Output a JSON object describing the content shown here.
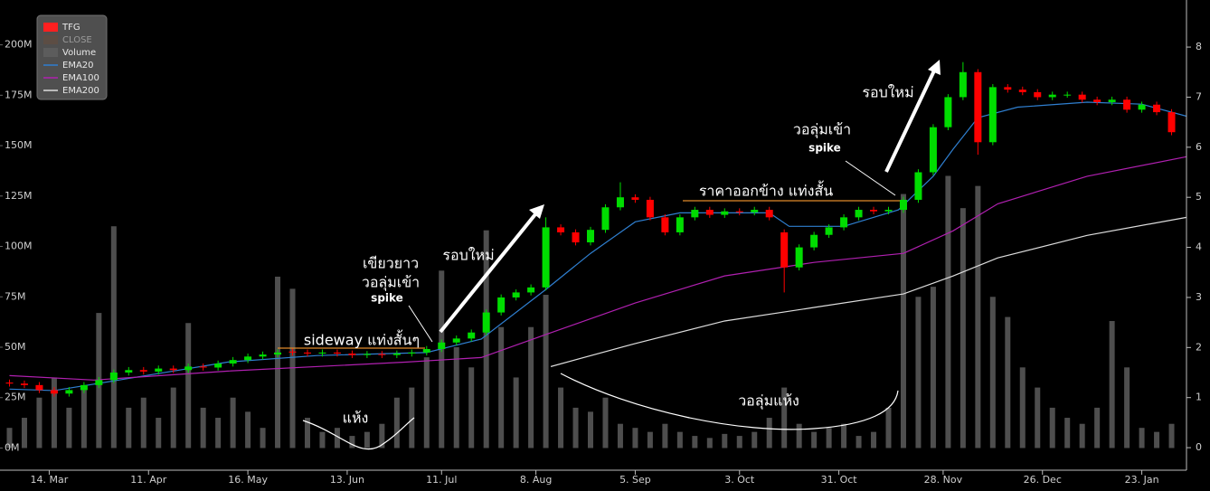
{
  "chart_data": {
    "type": "candlestick",
    "xlim": [
      -1,
      237
    ],
    "xticks": [
      {
        "value": 8,
        "label": "14. Mar"
      },
      {
        "value": 28,
        "label": "11. Apr"
      },
      {
        "value": 48,
        "label": "16. May"
      },
      {
        "value": 68,
        "label": "13. Jun"
      },
      {
        "value": 87,
        "label": "11. Jul"
      },
      {
        "value": 106,
        "label": "8. Aug"
      },
      {
        "value": 126,
        "label": "5. Sep"
      },
      {
        "value": 147,
        "label": "3. Oct"
      },
      {
        "value": 167,
        "label": "31. Oct"
      },
      {
        "value": 188,
        "label": "28. Nov"
      },
      {
        "value": 208,
        "label": "26. Dec"
      },
      {
        "value": 228,
        "label": "23. Jan"
      }
    ],
    "ylim": [
      -11000000,
      220000000
    ],
    "yticks": [
      {
        "value": 0,
        "label": "0M"
      },
      {
        "value": 25000000,
        "label": "25M"
      },
      {
        "value": 50000000,
        "label": "50M"
      },
      {
        "value": 75000000,
        "label": "75M"
      },
      {
        "value": 100000000,
        "label": "100M"
      },
      {
        "value": 125000000,
        "label": "125M"
      },
      {
        "value": 150000000,
        "label": "150M"
      },
      {
        "value": 175000000,
        "label": "175M"
      },
      {
        "value": 200000000,
        "label": "200M"
      }
    ],
    "y2lim": [
      -0.45,
      8.85
    ],
    "y2ticks": [
      0,
      1,
      2,
      3,
      4,
      5,
      6,
      7,
      8
    ],
    "legend": "top-left",
    "series": [
      {
        "name": "TFG",
        "type": "candlestick",
        "axis": "y2",
        "color": "#ff2020",
        "up_color": "#00dd00",
        "down_color": "#ff0000",
        "x": [
          0,
          3,
          6,
          9,
          12,
          15,
          18,
          21,
          24,
          27,
          30,
          33,
          36,
          39,
          42,
          45,
          48,
          51,
          54,
          57,
          60,
          63,
          66,
          69,
          72,
          75,
          78,
          81,
          84,
          87,
          90,
          93,
          96,
          99,
          102,
          105,
          108,
          111,
          114,
          117,
          120,
          123,
          126,
          129,
          132,
          135,
          138,
          141,
          144,
          147,
          150,
          153,
          156,
          159,
          162,
          165,
          168,
          171,
          174,
          177,
          180,
          183,
          186,
          189,
          192,
          195,
          198,
          201,
          204,
          207,
          210,
          213,
          216,
          219,
          222,
          225,
          228,
          231,
          234
        ],
        "open": [
          1.3,
          1.28,
          1.25,
          1.15,
          1.08,
          1.15,
          1.25,
          1.35,
          1.5,
          1.55,
          1.52,
          1.58,
          1.55,
          1.62,
          1.6,
          1.68,
          1.75,
          1.82,
          1.86,
          1.92,
          1.9,
          1.88,
          1.9,
          1.88,
          1.85,
          1.87,
          1.85,
          1.88,
          1.9,
          1.97,
          2.1,
          2.18,
          2.3,
          2.7,
          3.0,
          3.1,
          3.2,
          4.4,
          4.3,
          4.1,
          4.35,
          4.8,
          5.0,
          4.95,
          4.6,
          4.3,
          4.6,
          4.75,
          4.65,
          4.72,
          4.7,
          4.75,
          4.3,
          3.6,
          4.0,
          4.25,
          4.4,
          4.6,
          4.75,
          4.72,
          4.75,
          4.95,
          5.5,
          6.4,
          7.0,
          7.5,
          6.1,
          7.2,
          7.15,
          7.1,
          7.0,
          7.05,
          7.05,
          6.95,
          6.9,
          6.95,
          6.75,
          6.85,
          6.7
        ],
        "high": [
          1.36,
          1.34,
          1.31,
          1.21,
          1.21,
          1.31,
          1.41,
          1.56,
          1.61,
          1.61,
          1.64,
          1.64,
          1.68,
          1.68,
          1.74,
          1.81,
          1.88,
          1.92,
          1.96,
          1.98,
          1.96,
          1.96,
          1.96,
          1.94,
          1.93,
          1.93,
          1.94,
          1.96,
          2.03,
          2.16,
          2.24,
          2.36,
          2.76,
          3.06,
          3.16,
          3.26,
          4.6,
          4.46,
          4.36,
          4.41,
          4.86,
          5.3,
          5.06,
          5.01,
          4.66,
          4.66,
          4.81,
          4.81,
          4.78,
          4.78,
          4.81,
          4.81,
          4.36,
          4.06,
          4.31,
          4.46,
          4.66,
          4.81,
          4.81,
          4.81,
          5.01,
          5.56,
          6.46,
          7.06,
          7.7,
          7.56,
          7.26,
          7.26,
          7.21,
          7.16,
          7.11,
          7.11,
          7.11,
          7.01,
          7.01,
          7.01,
          6.91,
          6.91,
          6.76
        ],
        "low": [
          1.22,
          1.19,
          1.09,
          1.02,
          1.02,
          1.09,
          1.19,
          1.29,
          1.44,
          1.46,
          1.46,
          1.49,
          1.49,
          1.54,
          1.54,
          1.62,
          1.69,
          1.76,
          1.8,
          1.84,
          1.82,
          1.82,
          1.82,
          1.79,
          1.79,
          1.79,
          1.79,
          1.82,
          1.84,
          1.91,
          2.04,
          2.12,
          2.24,
          2.64,
          2.94,
          3.04,
          3.14,
          4.24,
          4.04,
          4.04,
          4.29,
          4.74,
          4.89,
          4.54,
          4.24,
          4.24,
          4.54,
          4.59,
          4.59,
          4.64,
          4.64,
          4.54,
          3.1,
          3.54,
          3.94,
          4.19,
          4.34,
          4.54,
          4.66,
          4.66,
          4.69,
          4.89,
          5.44,
          6.34,
          6.94,
          5.85,
          6.04,
          7.09,
          7.04,
          6.94,
          6.94,
          6.99,
          6.89,
          6.84,
          6.84,
          6.69,
          6.69,
          6.64,
          6.24
        ],
        "close": [
          1.28,
          1.25,
          1.15,
          1.08,
          1.15,
          1.25,
          1.35,
          1.5,
          1.55,
          1.52,
          1.58,
          1.55,
          1.62,
          1.6,
          1.68,
          1.75,
          1.82,
          1.86,
          1.9,
          1.9,
          1.88,
          1.9,
          1.88,
          1.85,
          1.87,
          1.85,
          1.88,
          1.9,
          1.97,
          2.1,
          2.18,
          2.3,
          2.7,
          3.0,
          3.1,
          3.2,
          4.4,
          4.3,
          4.1,
          4.35,
          4.8,
          5.0,
          4.95,
          4.6,
          4.3,
          4.6,
          4.75,
          4.65,
          4.72,
          4.7,
          4.75,
          4.6,
          3.6,
          4.0,
          4.25,
          4.4,
          4.6,
          4.75,
          4.72,
          4.75,
          4.95,
          5.5,
          6.4,
          7.0,
          7.5,
          6.1,
          7.2,
          7.15,
          7.1,
          7.0,
          7.05,
          7.05,
          6.95,
          6.9,
          6.95,
          6.75,
          6.85,
          6.7,
          6.3
        ]
      },
      {
        "name": "CLOSE",
        "color": "#7a4a2a",
        "hidden": true
      },
      {
        "name": "Volume",
        "type": "bar",
        "axis": "y",
        "color": "#5c5c5c",
        "x": [
          0,
          3,
          6,
          9,
          12,
          15,
          18,
          21,
          24,
          27,
          30,
          33,
          36,
          39,
          42,
          45,
          48,
          51,
          54,
          57,
          60,
          63,
          66,
          69,
          72,
          75,
          78,
          81,
          84,
          87,
          90,
          93,
          96,
          99,
          102,
          105,
          108,
          111,
          114,
          117,
          120,
          123,
          126,
          129,
          132,
          135,
          138,
          141,
          144,
          147,
          150,
          153,
          156,
          159,
          162,
          165,
          168,
          171,
          174,
          177,
          180,
          183,
          186,
          189,
          192,
          195,
          198,
          201,
          204,
          207,
          210,
          213,
          216,
          219,
          222,
          225,
          228,
          231,
          234
        ],
        "values": [
          10000000,
          15000000,
          25000000,
          35000000,
          20000000,
          30000000,
          67000000,
          110000000,
          20000000,
          25000000,
          15000000,
          30000000,
          62000000,
          20000000,
          15000000,
          25000000,
          18000000,
          10000000,
          85000000,
          79000000,
          15000000,
          8000000,
          10000000,
          6000000,
          8000000,
          12000000,
          25000000,
          30000000,
          45000000,
          88000000,
          50000000,
          40000000,
          108000000,
          60000000,
          35000000,
          60000000,
          76000000,
          30000000,
          20000000,
          18000000,
          25000000,
          12000000,
          10000000,
          8000000,
          12000000,
          8000000,
          6000000,
          5000000,
          7000000,
          6000000,
          8000000,
          15000000,
          30000000,
          12000000,
          8000000,
          10000000,
          12000000,
          6000000,
          8000000,
          20000000,
          126000000,
          75000000,
          80000000,
          135000000,
          119000000,
          130000000,
          75000000,
          65000000,
          40000000,
          30000000,
          20000000,
          15000000,
          12000000,
          20000000,
          63000000,
          40000000,
          10000000,
          8000000,
          12000000
        ]
      },
      {
        "name": "EMA20",
        "type": "line",
        "axis": "y2",
        "color": "#2f7fd0",
        "x": [
          0,
          9,
          22,
          44,
          62,
          84,
          95,
          108,
          117,
          126,
          135,
          153,
          157,
          168,
          179,
          186,
          190,
          195,
          203,
          217,
          228,
          237
        ],
        "values": [
          1.17,
          1.14,
          1.35,
          1.71,
          1.84,
          1.9,
          2.17,
          3.16,
          3.88,
          4.51,
          4.69,
          4.69,
          4.42,
          4.42,
          4.75,
          5.42,
          5.96,
          6.59,
          6.8,
          6.9,
          6.86,
          6.62
        ]
      },
      {
        "name": "EMA100",
        "type": "line",
        "axis": "y2",
        "color": "#b020b0",
        "x": [
          0,
          17,
          44,
          80,
          95,
          108,
          126,
          144,
          162,
          180,
          190,
          199,
          217,
          237
        ],
        "values": [
          1.44,
          1.35,
          1.53,
          1.71,
          1.8,
          2.26,
          2.89,
          3.43,
          3.7,
          3.88,
          4.33,
          4.87,
          5.42,
          5.81
        ]
      },
      {
        "name": "EMA200",
        "type": "line",
        "axis": "y2",
        "color": "#dddddd",
        "x": [
          109,
          126,
          144,
          162,
          180,
          190,
          199,
          217,
          237
        ],
        "values": [
          1.62,
          2.08,
          2.53,
          2.8,
          3.07,
          3.43,
          3.79,
          4.24,
          4.6
        ]
      }
    ],
    "annotations": [
      "sideway แท่งสั้นๆ",
      "เขียวยาว",
      "วอลุ่มเข้า",
      "spike",
      "รอบใหม่",
      "ราคาออกข้าง แท่งสั้น",
      "วอลุ่มเข้า",
      "spike",
      "รอบใหม่",
      "แห้ง",
      "วอลุ่มแห้ง"
    ]
  }
}
